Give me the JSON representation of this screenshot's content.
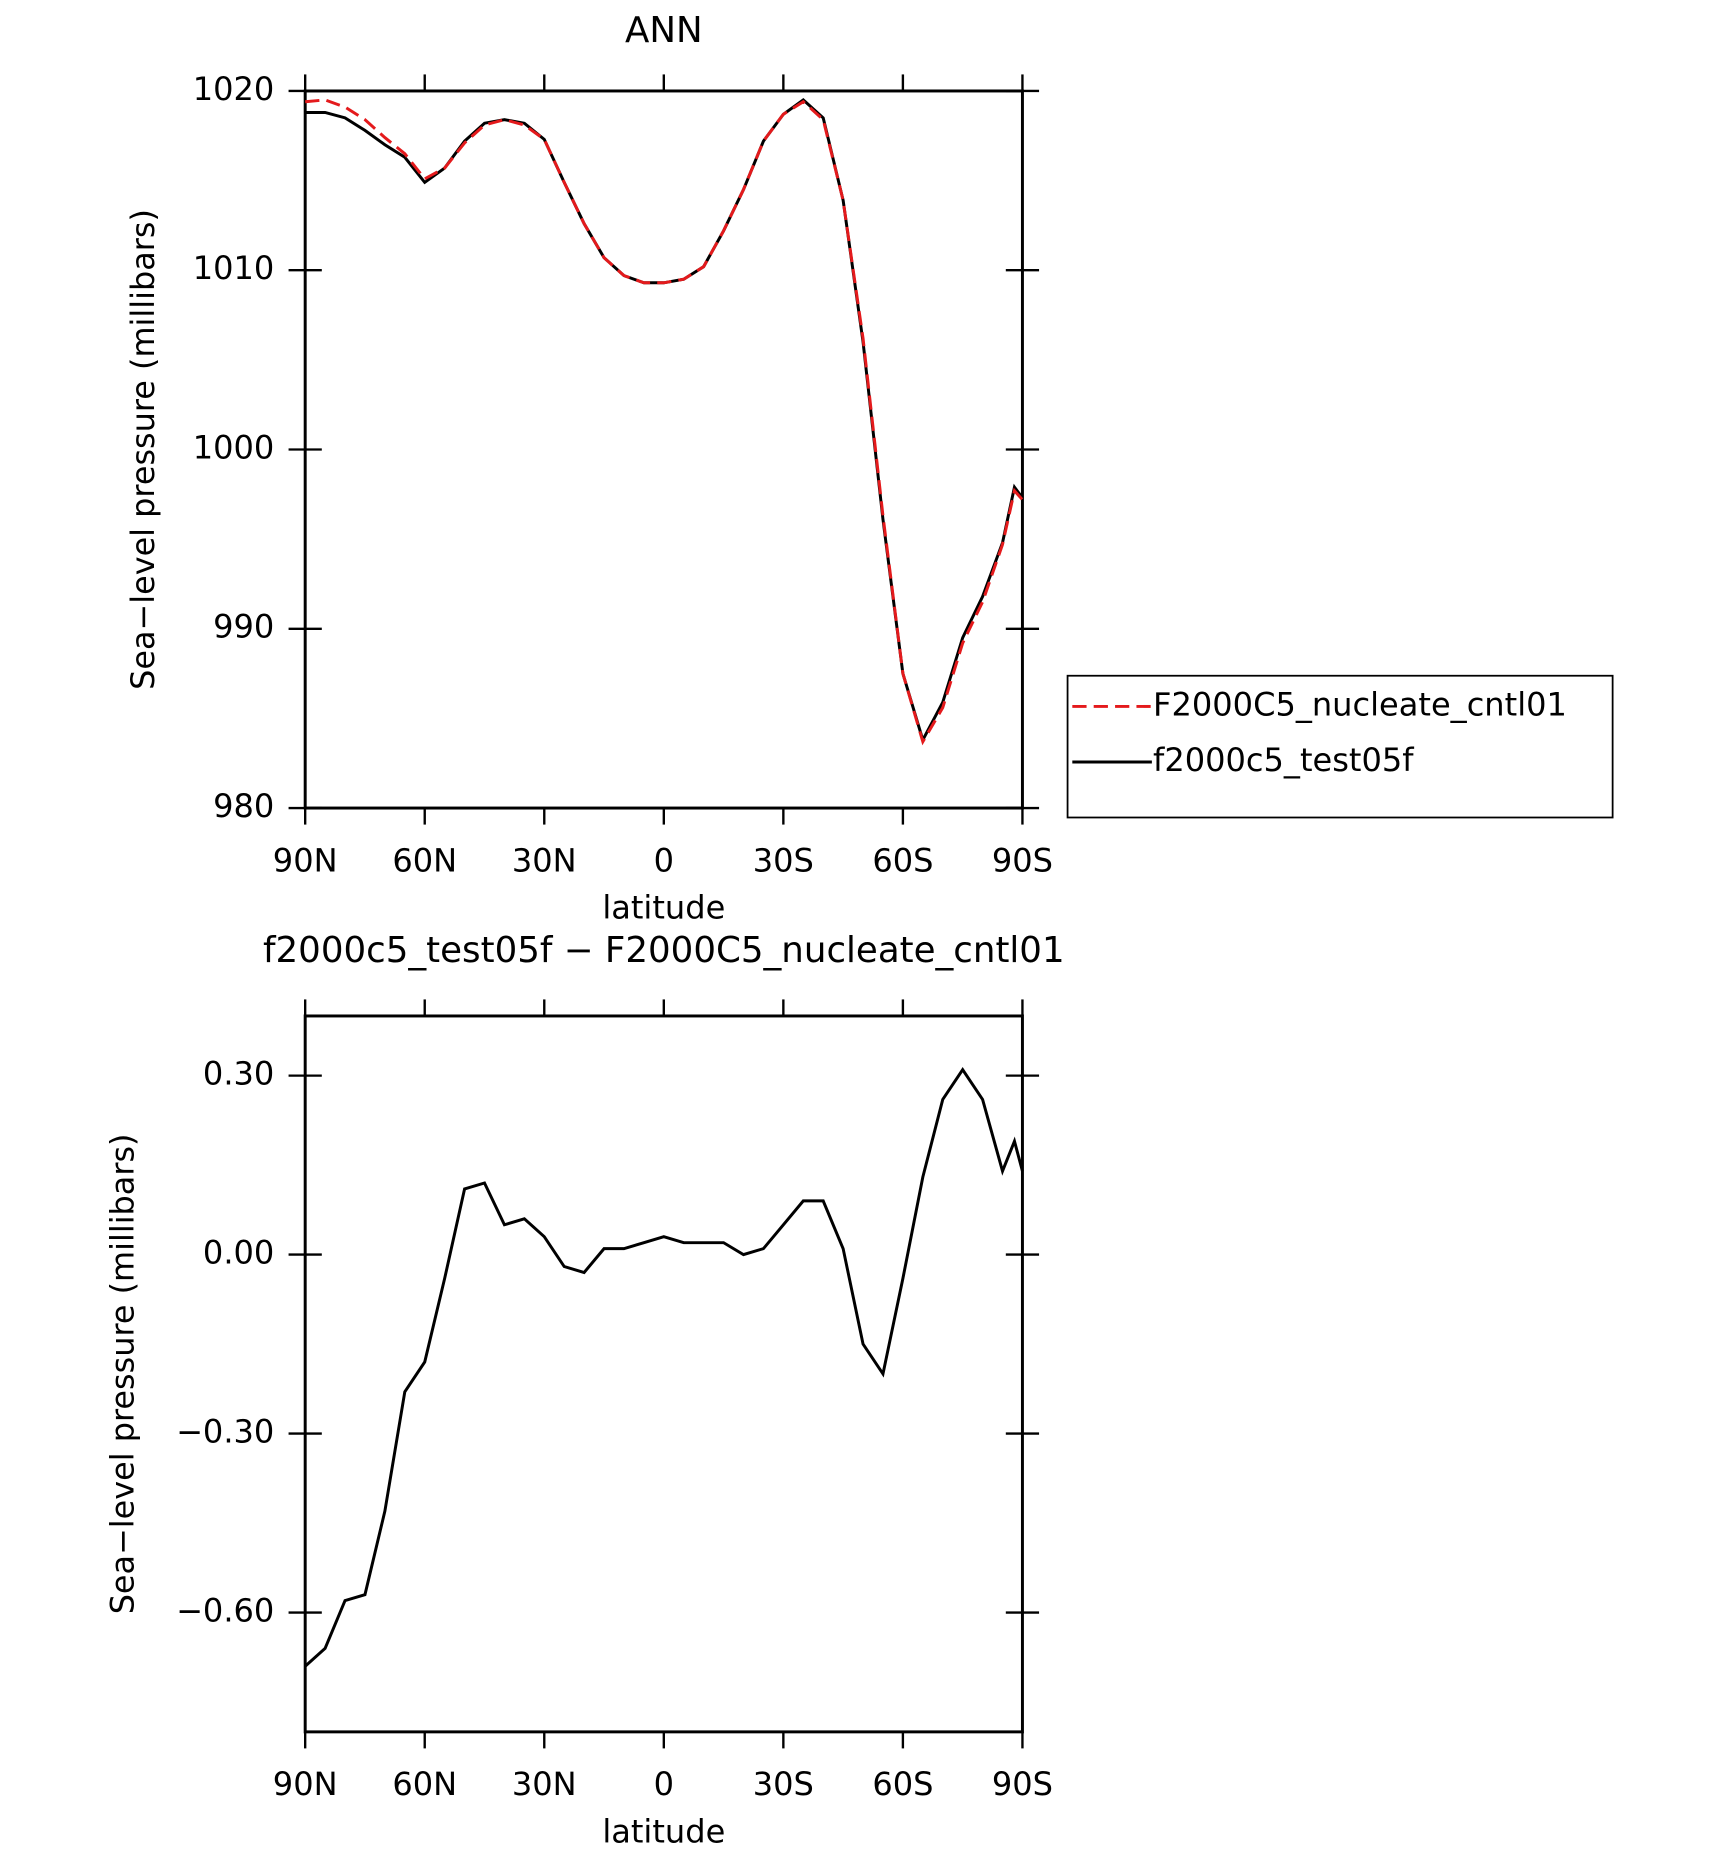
{
  "chart_data": [
    {
      "type": "line",
      "title": "ANN",
      "xlabel": "latitude",
      "ylabel": "Sea−level pressure (millibars)",
      "x": [
        90,
        85,
        80,
        75,
        70,
        65,
        60,
        55,
        50,
        45,
        40,
        35,
        30,
        25,
        20,
        15,
        10,
        5,
        0,
        -5,
        -10,
        -15,
        -20,
        -25,
        -30,
        -35,
        -40,
        -45,
        -50,
        -55,
        -60,
        -65,
        -70,
        -75,
        -80,
        -85,
        -88,
        -90
      ],
      "series": [
        {
          "name": "F2000C5_nucleate_cntl01",
          "color": "#e41a1c",
          "linestyle": "dashed",
          "values": [
            1019.4,
            1019.5,
            1019.1,
            1018.4,
            1017.4,
            1016.5,
            1015.1,
            1015.7,
            1017.1,
            1018.1,
            1018.4,
            1018.1,
            1017.3,
            1014.9,
            1012.6,
            1010.7,
            1009.7,
            1009.3,
            1009.3,
            1009.5,
            1010.2,
            1012.2,
            1014.5,
            1017.2,
            1018.7,
            1019.4,
            1018.4,
            1013.9,
            1006.2,
            996.3,
            987.5,
            983.7,
            985.6,
            989.2,
            991.5,
            994.7,
            997.7,
            997.2
          ]
        },
        {
          "name": "f2000c5_test05f",
          "color": "#000000",
          "linestyle": "solid",
          "values": [
            1018.8,
            1018.8,
            1018.5,
            1017.8,
            1017.0,
            1016.3,
            1014.9,
            1015.7,
            1017.2,
            1018.2,
            1018.4,
            1018.2,
            1017.3,
            1014.9,
            1012.6,
            1010.7,
            1009.7,
            1009.3,
            1009.3,
            1009.5,
            1010.2,
            1012.2,
            1014.5,
            1017.2,
            1018.7,
            1019.5,
            1018.5,
            1013.9,
            1006.0,
            996.1,
            987.5,
            983.8,
            985.9,
            989.5,
            991.8,
            994.8,
            997.9,
            997.3
          ]
        }
      ],
      "xlim": [
        90,
        -90
      ],
      "xticks": [
        {
          "value": 90,
          "label": "90N"
        },
        {
          "value": 60,
          "label": "60N"
        },
        {
          "value": 30,
          "label": "30N"
        },
        0,
        {
          "value": -30,
          "label": "30S"
        },
        {
          "value": -60,
          "label": "60S"
        },
        {
          "value": -90,
          "label": "90S"
        }
      ],
      "ylim": [
        980,
        1020
      ],
      "yticks": [
        980,
        990,
        1000,
        1010,
        1020
      ],
      "grid": false,
      "legend": "right"
    },
    {
      "type": "line",
      "title": "f2000c5_test05f − F2000C5_nucleate_cntl01",
      "xlabel": "latitude",
      "ylabel": "Sea−level pressure (millibars)",
      "x": [
        90,
        85,
        80,
        75,
        70,
        65,
        60,
        55,
        50,
        45,
        40,
        35,
        30,
        25,
        20,
        15,
        10,
        5,
        0,
        -5,
        -10,
        -15,
        -20,
        -25,
        -30,
        -35,
        -40,
        -45,
        -50,
        -55,
        -60,
        -65,
        -70,
        -75,
        -80,
        -85,
        -88,
        -90
      ],
      "values": [
        -0.69,
        -0.66,
        -0.58,
        -0.57,
        -0.43,
        -0.23,
        -0.18,
        -0.04,
        0.11,
        0.12,
        0.05,
        0.06,
        0.03,
        -0.02,
        -0.03,
        0.01,
        0.01,
        0.02,
        0.03,
        0.02,
        0.02,
        0.02,
        0.0,
        0.01,
        0.05,
        0.09,
        0.09,
        0.01,
        -0.15,
        -0.2,
        -0.04,
        0.13,
        0.26,
        0.31,
        0.26,
        0.14,
        0.19,
        0.14
      ],
      "color": "#000000",
      "xlim": [
        90,
        -90
      ],
      "xticks": [
        {
          "value": 90,
          "label": "90N"
        },
        {
          "value": 60,
          "label": "60N"
        },
        {
          "value": 30,
          "label": "30N"
        },
        0,
        {
          "value": -30,
          "label": "30S"
        },
        {
          "value": -60,
          "label": "60S"
        },
        {
          "value": -90,
          "label": "90S"
        }
      ],
      "ylim": [
        -0.8,
        0.4
      ],
      "yticks": [
        {
          "value": -0.6,
          "label": "−0.60"
        },
        {
          "value": -0.3,
          "label": "−0.30"
        },
        {
          "value": 0,
          "label": "0.00"
        },
        {
          "value": 0.3,
          "label": "0.30"
        }
      ],
      "grid": false
    }
  ]
}
